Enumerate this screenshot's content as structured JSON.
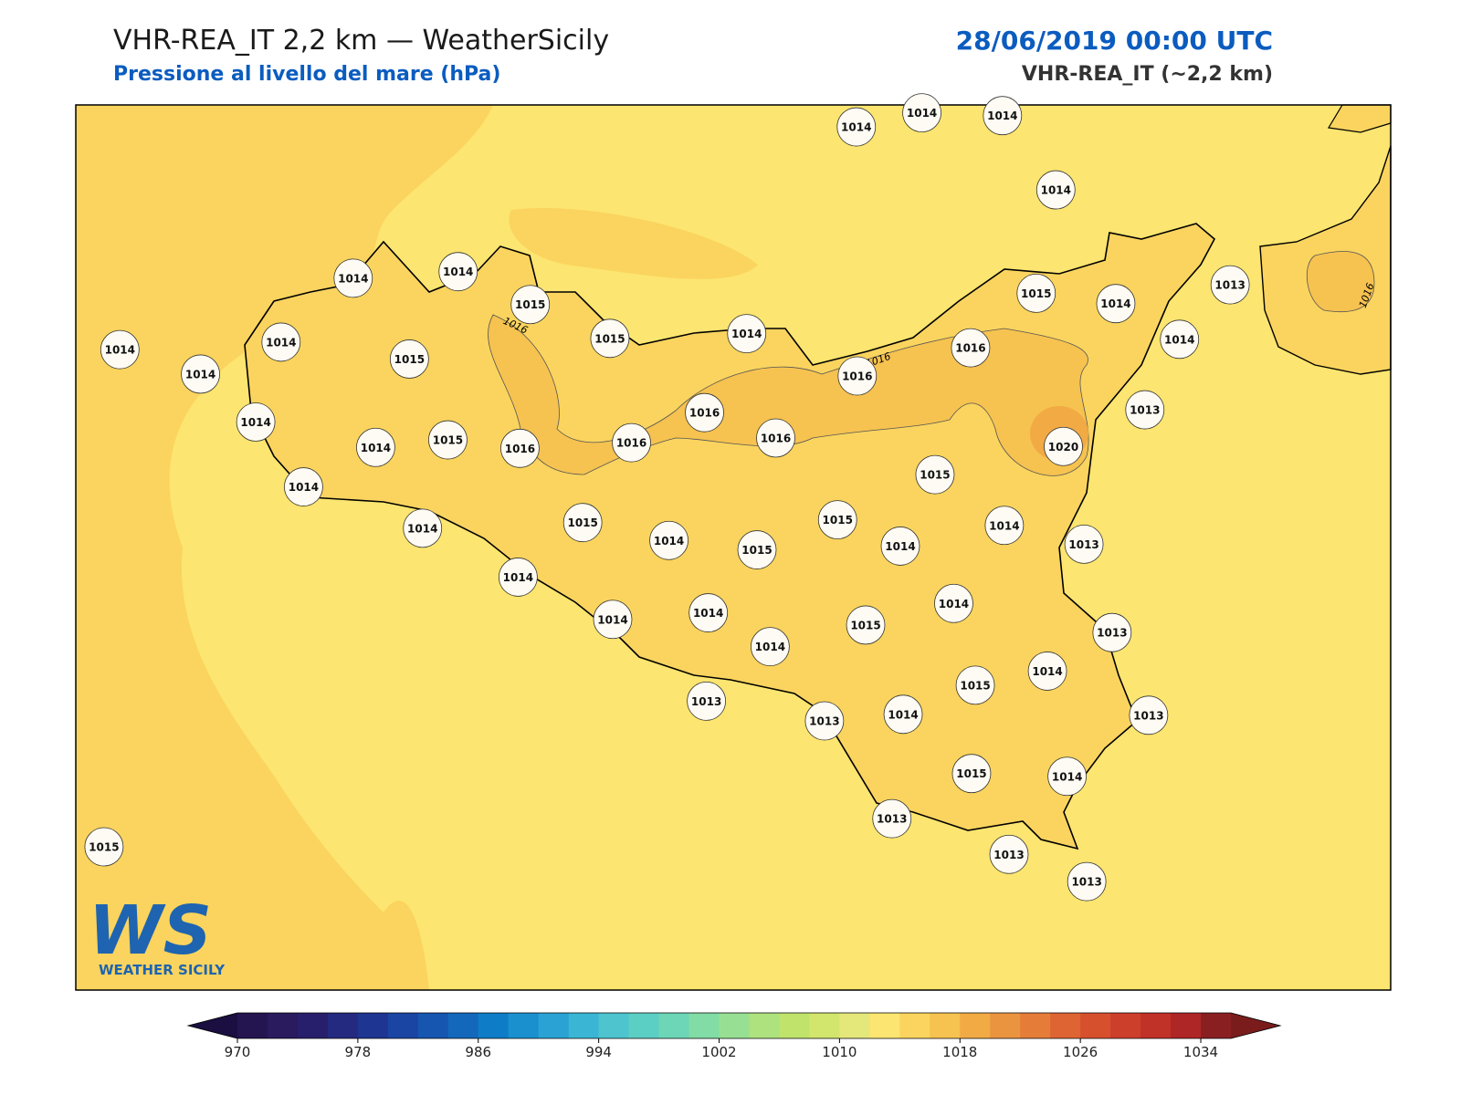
{
  "header": {
    "title": "VHR-REA_IT 2,2 km — WeatherSicily",
    "subtitle": "Pressione al livello del mare (hPa)",
    "datetime": "28/06/2019 00:00 UTC",
    "model": "VHR-REA_IT (~2,2 km)"
  },
  "map": {
    "stations": [
      1014,
      1014,
      1014,
      1014,
      1014,
      1014,
      1015,
      1015,
      1014,
      1015,
      1014,
      1013,
      1014,
      1014,
      1014,
      1015,
      1014,
      1016,
      1016,
      1013,
      1016,
      1014,
      1014,
      1015,
      1016,
      1016,
      1016,
      1020,
      1015,
      1014,
      1014,
      1015,
      1015,
      1014,
      1013,
      1014,
      1015,
      1014,
      1014,
      1014,
      1014,
      1014,
      1015,
      1013,
      1014,
      1014,
      1015,
      1013,
      1013,
      1014,
      1013,
      1015,
      1014,
      1015,
      1013,
      1013,
      1013
    ],
    "contour_labels": [
      1016,
      1016,
      1016
    ]
  },
  "colorbar": {
    "range": [
      970,
      1036
    ],
    "ticks": [
      970,
      978,
      986,
      994,
      1002,
      1010,
      1018,
      1026,
      1034
    ],
    "colors": [
      "#241450",
      "#2a1a5e",
      "#271f6c",
      "#232a80",
      "#1e3592",
      "#1a45a3",
      "#1656b1",
      "#1368bc",
      "#0f7cc7",
      "#1a90cf",
      "#2aa2d3",
      "#3ab6d4",
      "#4ec4cf",
      "#5ccfc4",
      "#6dd6b7",
      "#82dca5",
      "#97e093",
      "#aee27e",
      "#c0e36c",
      "#d2e56c",
      "#e4e77a",
      "#fce570",
      "#fad45e",
      "#f6c250",
      "#f2aa45",
      "#eb9440",
      "#e57d39",
      "#de6433",
      "#d6502e",
      "#cc3f2b",
      "#c03128",
      "#ae2626",
      "#8a1f22"
    ]
  },
  "logo": {
    "mark": "WS",
    "name": "WEATHER SICILY"
  }
}
